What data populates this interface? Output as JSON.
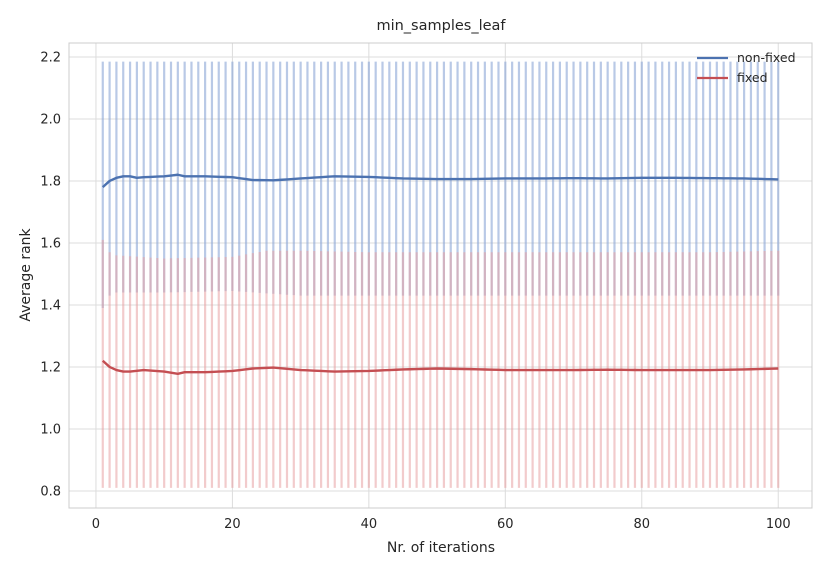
{
  "chart_data": {
    "type": "line",
    "title": "min_samples_leaf",
    "xlabel": "Nr. of iterations",
    "ylabel": "Average rank",
    "xlim": [
      -3.95,
      104.95
    ],
    "ylim": [
      0.745,
      2.245
    ],
    "xticks": [
      0,
      20,
      40,
      60,
      80,
      100
    ],
    "yticks": [
      0.8,
      1.0,
      1.2,
      1.4,
      1.6,
      1.8,
      2.0,
      2.2
    ],
    "grid": true,
    "legend_position": "top-right",
    "x": {
      "start": 1,
      "end": 100,
      "step": 1
    },
    "series": [
      {
        "name": "non-fixed",
        "color": "#4c72b0",
        "error_color": "#8aa5d6",
        "keypoints": [
          [
            1,
            1.78
          ],
          [
            2,
            1.8
          ],
          [
            3,
            1.81
          ],
          [
            4,
            1.815
          ],
          [
            5,
            1.815
          ],
          [
            6,
            1.81
          ],
          [
            7,
            1.812
          ],
          [
            10,
            1.815
          ],
          [
            12,
            1.82
          ],
          [
            13,
            1.815
          ],
          [
            16,
            1.815
          ],
          [
            20,
            1.812
          ],
          [
            23,
            1.803
          ],
          [
            26,
            1.802
          ],
          [
            30,
            1.808
          ],
          [
            35,
            1.815
          ],
          [
            40,
            1.813
          ],
          [
            45,
            1.808
          ],
          [
            50,
            1.806
          ],
          [
            55,
            1.806
          ],
          [
            60,
            1.808
          ],
          [
            65,
            1.808
          ],
          [
            70,
            1.809
          ],
          [
            75,
            1.808
          ],
          [
            80,
            1.81
          ],
          [
            85,
            1.81
          ],
          [
            90,
            1.809
          ],
          [
            95,
            1.808
          ],
          [
            100,
            1.805
          ]
        ],
        "error_upper": 2.185,
        "error_lower_keypoints": [
          [
            1,
            1.39
          ],
          [
            2,
            1.43
          ],
          [
            3,
            1.44
          ],
          [
            10,
            1.44
          ],
          [
            20,
            1.445
          ],
          [
            30,
            1.43
          ],
          [
            40,
            1.43
          ],
          [
            50,
            1.43
          ],
          [
            60,
            1.43
          ],
          [
            70,
            1.43
          ],
          [
            80,
            1.43
          ],
          [
            90,
            1.43
          ],
          [
            100,
            1.43
          ]
        ]
      },
      {
        "name": "fixed",
        "color": "#c44e52",
        "error_color": "#e8a0a2",
        "keypoints": [
          [
            1,
            1.22
          ],
          [
            2,
            1.2
          ],
          [
            3,
            1.19
          ],
          [
            4,
            1.185
          ],
          [
            5,
            1.185
          ],
          [
            7,
            1.19
          ],
          [
            10,
            1.185
          ],
          [
            12,
            1.178
          ],
          [
            13,
            1.183
          ],
          [
            16,
            1.183
          ],
          [
            20,
            1.187
          ],
          [
            23,
            1.195
          ],
          [
            26,
            1.198
          ],
          [
            30,
            1.19
          ],
          [
            35,
            1.185
          ],
          [
            40,
            1.187
          ],
          [
            45,
            1.192
          ],
          [
            50,
            1.195
          ],
          [
            55,
            1.193
          ],
          [
            60,
            1.19
          ],
          [
            65,
            1.19
          ],
          [
            70,
            1.19
          ],
          [
            75,
            1.191
          ],
          [
            80,
            1.19
          ],
          [
            85,
            1.19
          ],
          [
            90,
            1.19
          ],
          [
            95,
            1.192
          ],
          [
            100,
            1.195
          ]
        ],
        "error_lower": 0.81,
        "error_upper_keypoints": [
          [
            1,
            1.61
          ],
          [
            2,
            1.57
          ],
          [
            3,
            1.56
          ],
          [
            10,
            1.55
          ],
          [
            20,
            1.555
          ],
          [
            25,
            1.575
          ],
          [
            30,
            1.575
          ],
          [
            40,
            1.57
          ],
          [
            50,
            1.57
          ],
          [
            60,
            1.57
          ],
          [
            70,
            1.57
          ],
          [
            80,
            1.57
          ],
          [
            90,
            1.57
          ],
          [
            100,
            1.575
          ]
        ]
      }
    ]
  }
}
